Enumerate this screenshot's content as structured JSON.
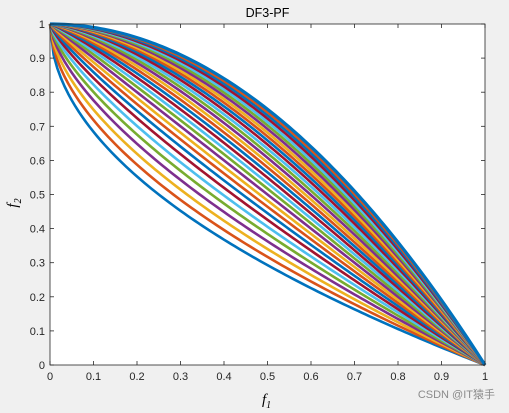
{
  "chart_data": {
    "type": "line",
    "title": "DF3-PF",
    "xlabel_base": "f",
    "xlabel_sub": "1",
    "ylabel_base": "f",
    "ylabel_sub": "2",
    "xlim": [
      0,
      1
    ],
    "ylim": [
      0,
      1
    ],
    "xticks": [
      "0",
      "0.1",
      "0.2",
      "0.3",
      "0.4",
      "0.5",
      "0.6",
      "0.7",
      "0.8",
      "0.9",
      "1"
    ],
    "yticks": [
      "0",
      "0.1",
      "0.2",
      "0.3",
      "0.4",
      "0.5",
      "0.6",
      "0.7",
      "0.8",
      "0.9",
      "1"
    ],
    "grid": false,
    "legend": "none",
    "curve_family": "f2 = 1 - f1^H",
    "exponents": [
      0.5,
      0.55,
      0.6,
      0.65,
      0.7,
      0.75,
      0.8,
      0.85,
      0.9,
      0.95,
      1.0,
      1.05,
      1.1,
      1.15,
      1.2,
      1.25,
      1.3,
      1.35,
      1.4,
      1.45,
      1.5,
      1.55,
      1.6,
      1.65,
      1.7,
      1.75,
      1.8,
      1.85,
      1.9,
      1.95,
      2.0
    ],
    "colors": [
      "#0072BD",
      "#D95319",
      "#EDB120",
      "#7E2F8E",
      "#77AC30",
      "#4DBEEE",
      "#A2142F"
    ],
    "last_series_color": "#0072BD"
  },
  "watermark": "CSDN @IT猿手"
}
